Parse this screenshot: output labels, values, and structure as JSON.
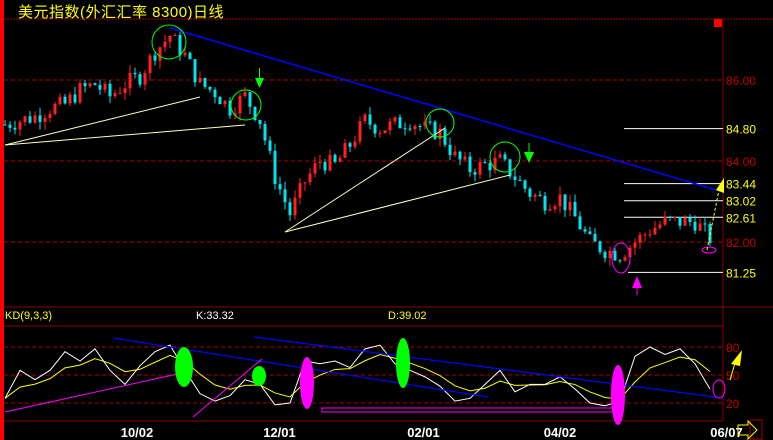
{
  "title": "美元指数(外汇汇率 8300)日线",
  "colors": {
    "up": "#ff2020",
    "down": "#00e5ee",
    "axis": "#8b0000",
    "grid": "#b00000",
    "k": "#ffffff",
    "d": "#ffff00",
    "trend": "#0000ff",
    "support": "#ff00ff"
  },
  "chart_data": [
    {
      "type": "candlestick",
      "title": "美元指数(外汇汇率 8300)日线",
      "y_ticks": [
        "86.00",
        "84.00",
        "82.00"
      ],
      "y_tick_values": [
        86,
        84,
        82
      ],
      "ylim": [
        80.6,
        88.0
      ],
      "grid": "dashed-horizontal",
      "levels": [
        "84.80",
        "83.44",
        "83.02",
        "82.61",
        "81.25"
      ],
      "level_values": [
        84.8,
        83.44,
        83.02,
        82.61,
        81.25
      ],
      "x_ticks": [
        {
          "label": "10/02",
          "index": 8.8
        },
        {
          "label": "12/01",
          "index": 18.3
        },
        {
          "label": "02/01",
          "index": 27.9
        },
        {
          "label": "04/02",
          "index": 37.0
        },
        {
          "label": "06/07",
          "index": 48.1
        }
      ],
      "closes": [
        84.9,
        85.0,
        85.1,
        85.3,
        85.4,
        85.75,
        85.9,
        85.6,
        85.9,
        86.1,
        86.7,
        87.1,
        86.6,
        85.9,
        85.7,
        85.3,
        85.6,
        85.0,
        83.6,
        82.7,
        83.5,
        84.0,
        83.9,
        84.4,
        85.0,
        84.8,
        84.9,
        85.0,
        84.8,
        84.7,
        84.1,
        83.8,
        83.9,
        84.0,
        83.6,
        83.2,
        83.0,
        83.1,
        82.6,
        82.0,
        81.8,
        81.7,
        82.0,
        82.3,
        82.5,
        82.5,
        82.5,
        82.1
      ]
    },
    {
      "type": "line",
      "title": "KD(9,3,3)",
      "y_ticks": [
        "80",
        "50",
        "20"
      ],
      "y_tick_values": [
        80,
        50,
        20
      ],
      "ylim": [
        0,
        100
      ],
      "series": [
        {
          "name": "K",
          "last": "K:33.32",
          "values": [
            25,
            55,
            45,
            55,
            75,
            65,
            78,
            55,
            40,
            60,
            75,
            82,
            55,
            30,
            22,
            28,
            45,
            40,
            18,
            20,
            65,
            62,
            65,
            58,
            78,
            82,
            62,
            55,
            48,
            38,
            22,
            25,
            40,
            55,
            32,
            40,
            40,
            48,
            35,
            20,
            17,
            22,
            70,
            80,
            72,
            78,
            62,
            35
          ]
        },
        {
          "name": "D",
          "last": "D:39.02"
        }
      ]
    }
  ]
}
